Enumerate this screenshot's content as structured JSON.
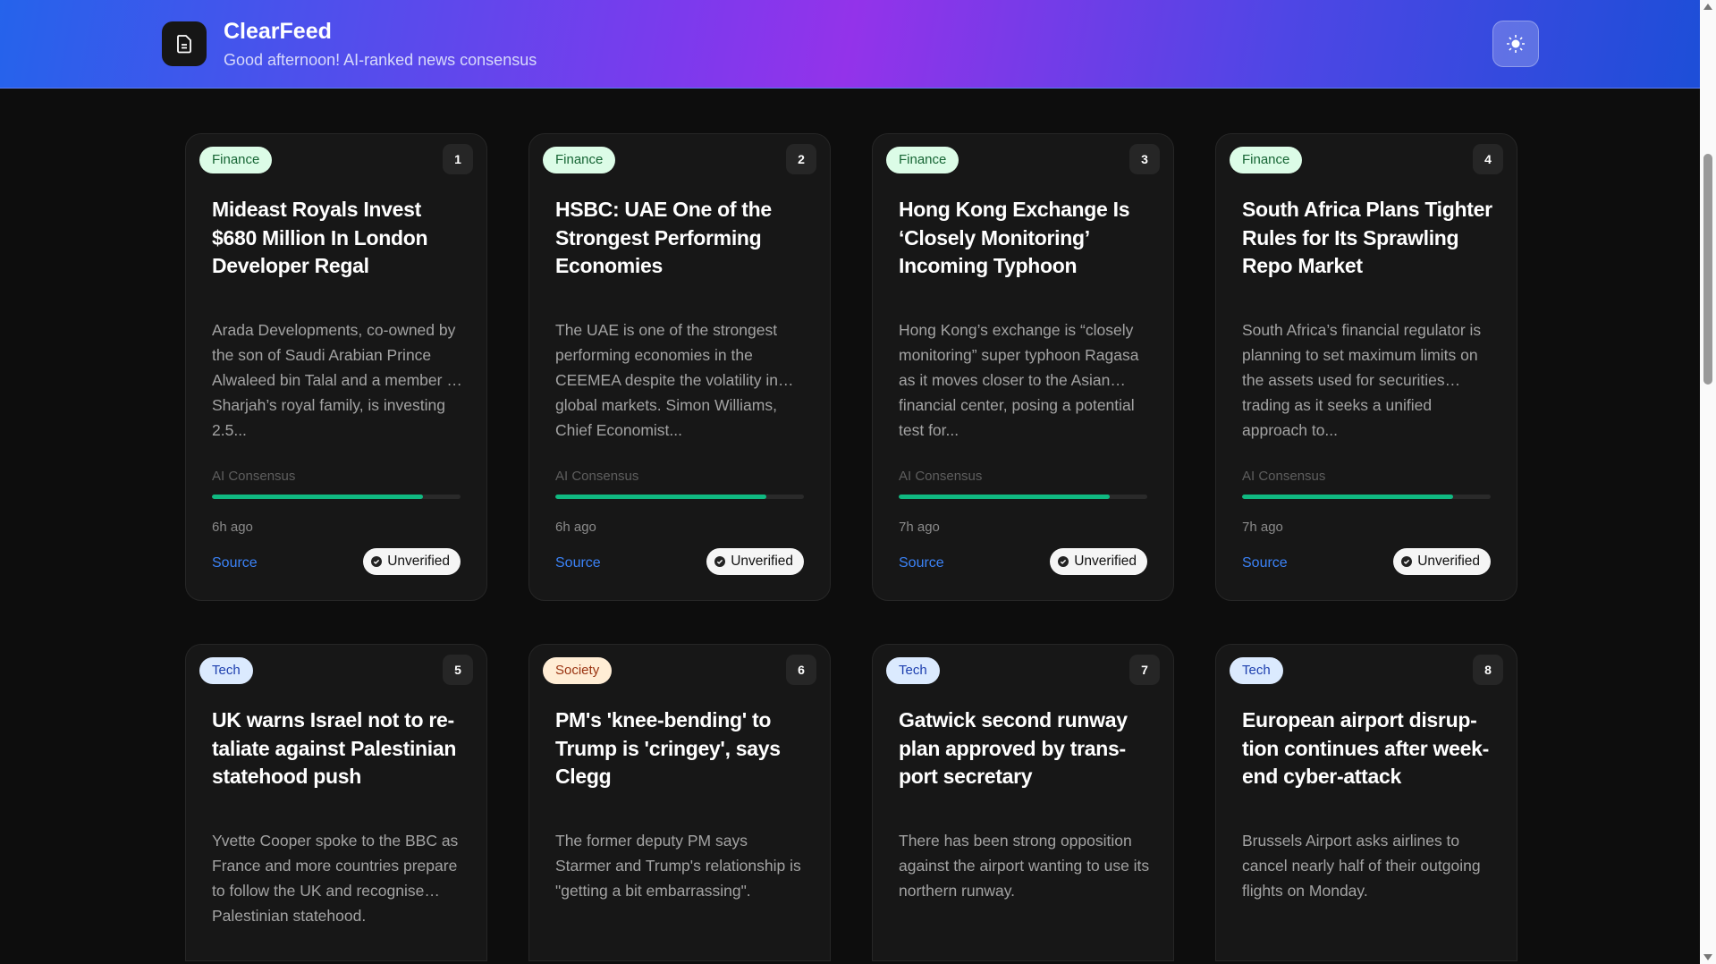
{
  "header": {
    "title": "ClearFeed",
    "subtitle": "Good afternoon! AI-ranked news consensus",
    "logo_icon": "document-icon",
    "theme_icon": "sun-icon"
  },
  "colors": {
    "accent": "#3b82f6",
    "consensus_bar": "#10b981"
  },
  "card_labels": {
    "consensus": "AI Consensus",
    "source": "Source",
    "status": "Unverified"
  },
  "articles": [
    {
      "rank": "1",
      "category": "Finance",
      "title": "Mideast Royals Invest $680 Million In London Developer Regal",
      "summary": "Arada Developments, co-owned by the son of Saudi Arabian Prince Alwaleed bin Talal and a member … Sharjah’s royal family, is investing 2.5...",
      "consensus": 0.85,
      "time": "6h ago"
    },
    {
      "rank": "2",
      "category": "Finance",
      "title": "HSBC: UAE One of the Strongest Performing Economies",
      "summary": "The UAE is one of the strongest performing economies in the CEEMEA despite the volatility in… global markets. Simon Williams, Chief Economist...",
      "consensus": 0.85,
      "time": "6h ago"
    },
    {
      "rank": "3",
      "category": "Finance",
      "title": "Hong Kong Exchange Is ‘Closely Monitoring’ Incoming Typhoon",
      "summary": "Hong Kong’s exchange is “closely monitoring” super typhoon Ragasa as it moves closer to the Asian… financial center, posing a potential test for...",
      "consensus": 0.85,
      "time": "7h ago"
    },
    {
      "rank": "4",
      "category": "Finance",
      "title": "South Africa Plans Tighter Rules for Its Sprawling Repo Market",
      "summary": "South Africa’s financial regulator is planning to set maximum limits on the assets used for securities… trading as it seeks a unified approach to...",
      "consensus": 0.85,
      "time": "7h ago"
    },
    {
      "rank": "5",
      "category": "Tech",
      "title": "UK warns Israel not to re­taliate against Palestinian statehood push",
      "summary": "Yvette Cooper spoke to the BBC as France and more countries prepare to follow the UK and recognise… Palestinian statehood."
    },
    {
      "rank": "6",
      "category": "Society",
      "title": "PM's 'knee-bending' to Trump is 'cringey', says Clegg",
      "summary": "The former deputy PM says Starmer and Trump's relationship is \"getting a bit embarrassing\"."
    },
    {
      "rank": "7",
      "category": "Tech",
      "title": "Gatwick second runway plan approved by trans­port secretary",
      "summary": "There has been strong opposition against the airport wanting to use its northern runway."
    },
    {
      "rank": "8",
      "category": "Tech",
      "title": "European airport disrup­tion continues after week­end cyber-attack",
      "summary": "Brussels Airport asks airlines to cancel nearly half of their outgoing flights on Monday."
    }
  ]
}
